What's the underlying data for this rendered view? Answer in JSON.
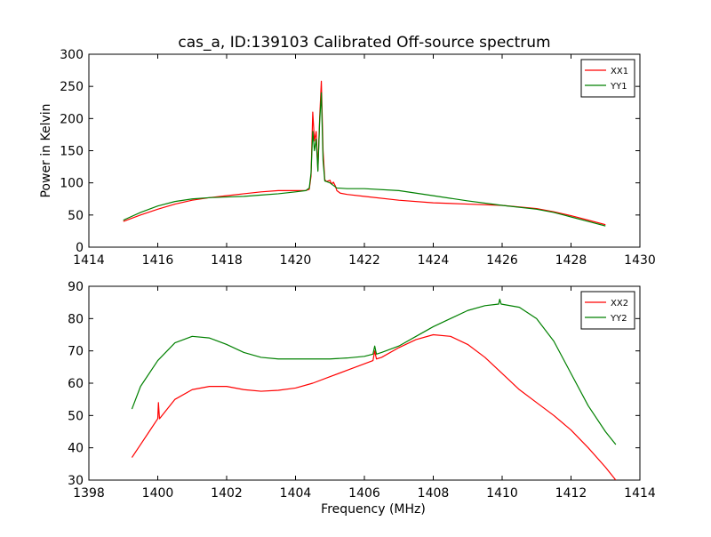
{
  "figure": {
    "title": "cas_a, ID:139103 Calibrated Off-source spectrum"
  },
  "chart_data": [
    {
      "type": "line",
      "title": "cas_a, ID:139103 Calibrated Off-source spectrum",
      "xlabel": "",
      "ylabel": "Power in Kelvin",
      "xlim": [
        1414,
        1430
      ],
      "ylim": [
        0,
        300
      ],
      "xticks": [
        1414,
        1416,
        1418,
        1420,
        1422,
        1424,
        1426,
        1428,
        1430
      ],
      "yticks": [
        0,
        50,
        100,
        150,
        200,
        250,
        300
      ],
      "legend_position": "top-right",
      "series": [
        {
          "name": "XX1",
          "color": "#ff0000",
          "x": [
            1415.0,
            1415.5,
            1416.0,
            1416.5,
            1417.0,
            1417.5,
            1418.0,
            1418.5,
            1419.0,
            1419.5,
            1420.0,
            1420.3,
            1420.4,
            1420.45,
            1420.5,
            1420.55,
            1420.6,
            1420.65,
            1420.7,
            1420.75,
            1420.8,
            1420.85,
            1420.9,
            1421.0,
            1421.05,
            1421.1,
            1421.15,
            1421.2,
            1421.3,
            1421.5,
            1422.0,
            1423.0,
            1424.0,
            1425.0,
            1426.0,
            1427.0,
            1427.5,
            1428.0,
            1428.5,
            1429.0
          ],
          "y": [
            40,
            50,
            59,
            67,
            73,
            77,
            80,
            83,
            86,
            88,
            88,
            88,
            90,
            110,
            210,
            165,
            180,
            120,
            200,
            258,
            150,
            105,
            102,
            104,
            98,
            101,
            96,
            88,
            84,
            82,
            79,
            73,
            69,
            67,
            65,
            60,
            55,
            49,
            42,
            35
          ]
        },
        {
          "name": "YY1",
          "color": "#008000",
          "x": [
            1415.0,
            1415.5,
            1416.0,
            1416.5,
            1417.0,
            1417.5,
            1418.0,
            1418.5,
            1419.0,
            1419.5,
            1420.0,
            1420.3,
            1420.4,
            1420.45,
            1420.5,
            1420.55,
            1420.6,
            1420.65,
            1420.7,
            1420.75,
            1420.8,
            1420.85,
            1420.9,
            1421.0,
            1421.1,
            1421.2,
            1421.5,
            1422.0,
            1423.0,
            1424.0,
            1425.0,
            1426.0,
            1427.0,
            1427.5,
            1428.0,
            1428.5,
            1429.0
          ],
          "y": [
            42,
            54,
            64,
            71,
            75,
            77,
            78,
            79,
            81,
            83,
            86,
            88,
            92,
            115,
            180,
            150,
            168,
            118,
            195,
            240,
            135,
            103,
            102,
            100,
            96,
            92,
            91,
            91,
            88,
            80,
            72,
            65,
            59,
            54,
            47,
            40,
            33
          ]
        }
      ]
    },
    {
      "type": "line",
      "title": "",
      "xlabel": "Frequency (MHz)",
      "ylabel": "",
      "xlim": [
        1398,
        1414
      ],
      "ylim": [
        30,
        90
      ],
      "xticks": [
        1398,
        1400,
        1402,
        1404,
        1406,
        1408,
        1410,
        1412,
        1414
      ],
      "yticks": [
        30,
        40,
        50,
        60,
        70,
        80,
        90
      ],
      "legend_position": "top-right",
      "series": [
        {
          "name": "XX2",
          "color": "#ff0000",
          "x": [
            1399.25,
            1399.5,
            1399.75,
            1400.0,
            1400.02,
            1400.05,
            1400.5,
            1401.0,
            1401.5,
            1402.0,
            1402.5,
            1403.0,
            1403.5,
            1404.0,
            1404.5,
            1405.0,
            1405.5,
            1406.0,
            1406.25,
            1406.3,
            1406.35,
            1406.5,
            1407.0,
            1407.5,
            1408.0,
            1408.5,
            1409.0,
            1409.5,
            1410.0,
            1410.5,
            1411.0,
            1411.5,
            1412.0,
            1412.5,
            1413.0,
            1413.3
          ],
          "y": [
            37,
            41,
            45,
            49,
            54,
            49,
            55,
            58,
            59,
            59,
            58,
            57.5,
            57.8,
            58.5,
            60,
            62,
            64,
            66,
            67,
            70,
            67.5,
            68,
            71,
            73.5,
            75,
            74.5,
            72,
            68,
            63,
            58,
            54,
            50,
            45.5,
            40,
            34,
            30
          ]
        },
        {
          "name": "YY2",
          "color": "#008000",
          "x": [
            1399.25,
            1399.5,
            1400.0,
            1400.5,
            1401.0,
            1401.5,
            1402.0,
            1402.5,
            1403.0,
            1403.5,
            1404.0,
            1404.5,
            1405.0,
            1405.5,
            1406.0,
            1406.25,
            1406.3,
            1406.35,
            1406.5,
            1407.0,
            1407.5,
            1408.0,
            1408.5,
            1409.0,
            1409.5,
            1409.9,
            1409.93,
            1409.97,
            1410.5,
            1411.0,
            1411.5,
            1412.0,
            1412.5,
            1413.0,
            1413.3
          ],
          "y": [
            52,
            59,
            67,
            72.5,
            74.5,
            74,
            72,
            69.5,
            68,
            67.5,
            67.5,
            67.5,
            67.5,
            67.8,
            68.3,
            69,
            71.5,
            69,
            69.5,
            71.5,
            74.5,
            77.5,
            80,
            82.5,
            84,
            84.5,
            86,
            84.5,
            83.5,
            80,
            73,
            63,
            53,
            45,
            41
          ]
        }
      ]
    }
  ]
}
